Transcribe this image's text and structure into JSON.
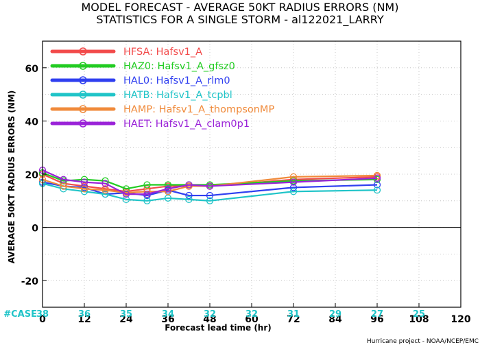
{
  "chart_data": {
    "type": "line",
    "title": "MODEL FORECAST - AVERAGE 50KT RADIUS ERRORS (NM)",
    "subtitle": "STATISTICS FOR A SINGLE STORM - al122021_LARRY",
    "xlabel": "Forecast lead time (hr)",
    "ylabel": "AVERAGE 50KT RADIUS ERRORS (NM)",
    "xlim": [
      0,
      120
    ],
    "ylim": [
      -30,
      70
    ],
    "xticks": [
      0,
      12,
      24,
      36,
      48,
      60,
      72,
      84,
      96,
      108,
      120
    ],
    "yticks": [
      -20,
      0,
      20,
      40,
      60
    ],
    "grid": true,
    "legend_position": "top-left",
    "case_label": "#CASE",
    "cases": [
      {
        "x": 0,
        "n": "38"
      },
      {
        "x": 12,
        "n": "36"
      },
      {
        "x": 24,
        "n": "35"
      },
      {
        "x": 36,
        "n": "34"
      },
      {
        "x": 48,
        "n": "32"
      },
      {
        "x": 60,
        "n": "32"
      },
      {
        "x": 72,
        "n": "31"
      },
      {
        "x": 84,
        "n": "29"
      },
      {
        "x": 96,
        "n": "27"
      },
      {
        "x": 108,
        "n": "25"
      }
    ],
    "x": [
      0,
      6,
      12,
      18,
      24,
      30,
      36,
      42,
      48,
      72,
      96
    ],
    "series": [
      {
        "name": "HFSA: Hafsv1_A",
        "color": "#f24a4a",
        "values": [
          20,
          16.5,
          15.5,
          14.5,
          13.5,
          14.5,
          15.5,
          15.5,
          15.5,
          18,
          19
        ]
      },
      {
        "name": "HAZ0: Hafsv1_A_gfsz0",
        "color": "#22cc22",
        "values": [
          20.5,
          17.5,
          18,
          17.5,
          14.5,
          16,
          16,
          16,
          16,
          17.5,
          18
        ]
      },
      {
        "name": "HAL0: Hafsv1_A_rlm0",
        "color": "#2f3ff0",
        "values": [
          17,
          15.5,
          15,
          12.5,
          13,
          12,
          14,
          12,
          12,
          15,
          16
        ]
      },
      {
        "name": "HATB: Hafsv1_A_tcpbl",
        "color": "#20c4c8",
        "values": [
          16.5,
          14.5,
          13.5,
          12.5,
          10.5,
          10,
          11,
          10.5,
          10,
          13.5,
          14
        ]
      },
      {
        "name": "HAMP: Hafsv1_A_thompsonMP",
        "color": "#f08a3a",
        "values": [
          18,
          15.5,
          14.5,
          14,
          13,
          13.5,
          13.5,
          15.5,
          15.5,
          19,
          19.5
        ]
      },
      {
        "name": "HAET: Hafsv1_A_clam0p1",
        "color": "#9a22d8",
        "values": [
          21.5,
          18,
          17,
          16.5,
          12.5,
          12.5,
          14.5,
          16,
          15.5,
          17,
          18.5
        ]
      }
    ],
    "credit": "Hurricane project - NOAA/NCEP/EMC"
  }
}
